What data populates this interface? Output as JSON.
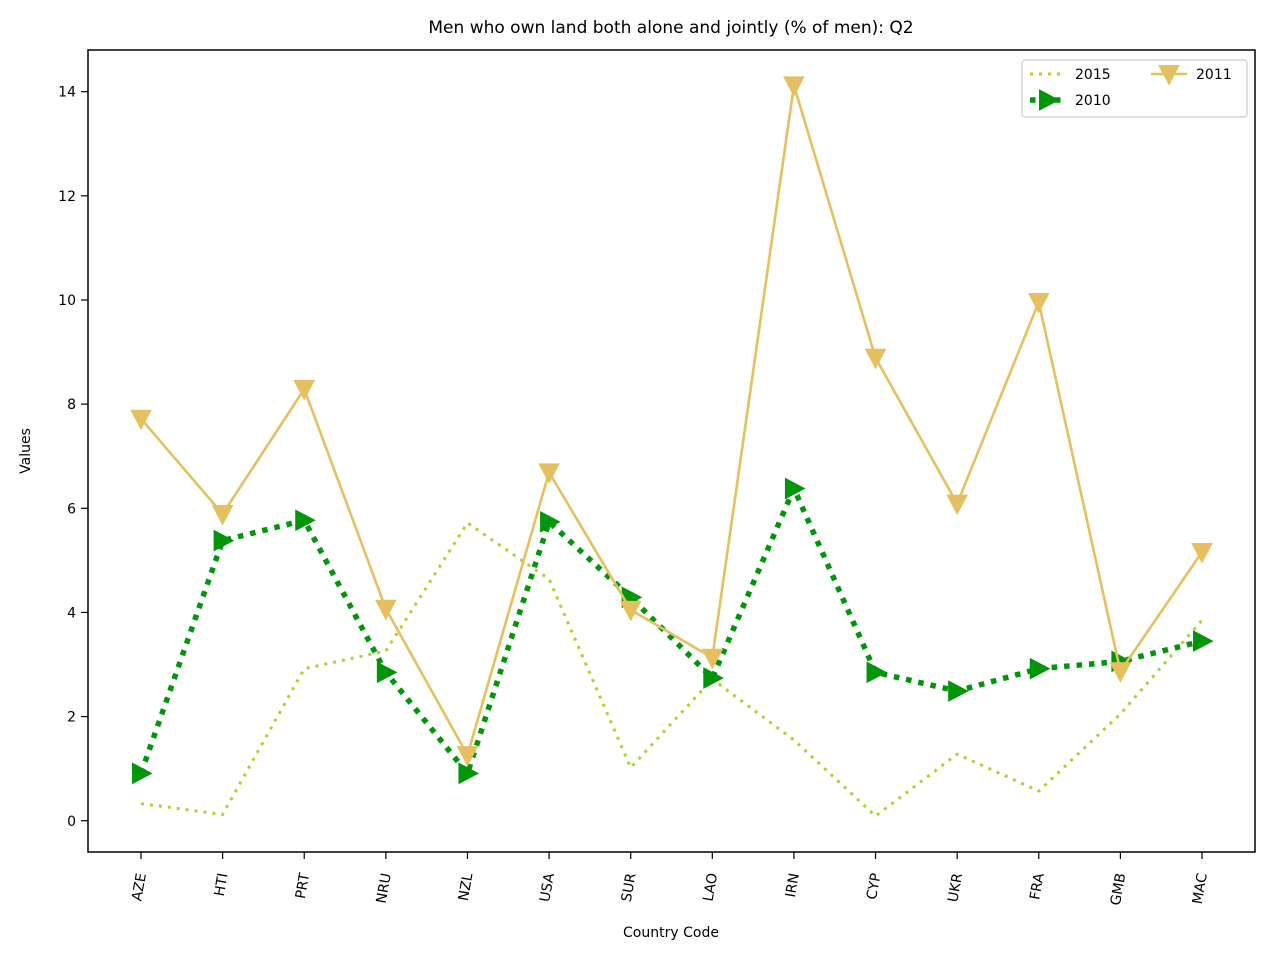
{
  "chart_data": {
    "type": "line",
    "title": "Men who own land both alone and jointly (% of men): Q2",
    "xlabel": "Country Code",
    "ylabel": "Values",
    "categories": [
      "AZE",
      "HTI",
      "PRT",
      "NRU",
      "NZL",
      "USA",
      "SUR",
      "LAO",
      "IRN",
      "CYP",
      "UKR",
      "FRA",
      "GMB",
      "MAC"
    ],
    "ylim": [
      -0.6,
      14.8
    ],
    "yticks": [
      0,
      2,
      4,
      6,
      8,
      10,
      12,
      14
    ],
    "grid": false,
    "legend_position": "top-right",
    "series": [
      {
        "name": "2015",
        "color": "#a6d62a",
        "line_style": "dotted",
        "marker": "none",
        "values": [
          0.33,
          0.12,
          2.92,
          3.26,
          5.72,
          4.64,
          1.02,
          2.72,
          1.55,
          0.09,
          1.28,
          0.57,
          2.05,
          3.85
        ]
      },
      {
        "name": "2010",
        "color": "#00960a",
        "line_style": "dotted-thick",
        "marker": "triangle-right",
        "values": [
          0.91,
          5.38,
          5.77,
          2.85,
          0.91,
          5.74,
          4.29,
          2.74,
          6.38,
          2.85,
          2.49,
          2.92,
          3.06,
          3.45
        ]
      },
      {
        "name": "2011",
        "color": "#e6c060",
        "line_style": "solid",
        "marker": "triangle-down",
        "values": [
          7.72,
          5.89,
          8.29,
          4.07,
          1.26,
          6.69,
          4.05,
          3.13,
          14.12,
          8.89,
          6.09,
          9.96,
          2.87,
          5.16
        ]
      }
    ]
  }
}
